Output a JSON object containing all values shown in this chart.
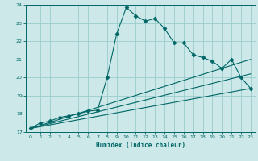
{
  "xlabel": "Humidex (Indice chaleur)",
  "xlim": [
    -0.5,
    23.5
  ],
  "ylim": [
    17,
    24
  ],
  "xticks": [
    0,
    1,
    2,
    3,
    4,
    5,
    6,
    7,
    8,
    9,
    10,
    11,
    12,
    13,
    14,
    15,
    16,
    17,
    18,
    19,
    20,
    21,
    22,
    23
  ],
  "yticks": [
    17,
    18,
    19,
    20,
    21,
    22,
    23,
    24
  ],
  "bg_color": "#cce8e8",
  "grid_color": "#99cccc",
  "line_color": "#006666",
  "series": [
    {
      "x": [
        0,
        1,
        2,
        3,
        4,
        5,
        6,
        7,
        8,
        9,
        10,
        11,
        12,
        13,
        14,
        15,
        16,
        17,
        18,
        19,
        20,
        21,
        22,
        23
      ],
      "y": [
        17.2,
        17.5,
        17.6,
        17.8,
        17.9,
        18.0,
        18.15,
        18.2,
        20.0,
        22.4,
        23.85,
        23.4,
        23.1,
        23.25,
        22.7,
        21.9,
        21.9,
        21.25,
        21.1,
        20.9,
        20.5,
        21.0,
        20.0,
        19.4
      ],
      "marker": "D",
      "markersize": 2.5
    },
    {
      "x": [
        0,
        23
      ],
      "y": [
        17.2,
        21.0
      ],
      "marker": null,
      "markersize": 0
    },
    {
      "x": [
        0,
        23
      ],
      "y": [
        17.2,
        20.2
      ],
      "marker": null,
      "markersize": 0
    },
    {
      "x": [
        0,
        23
      ],
      "y": [
        17.2,
        19.4
      ],
      "marker": null,
      "markersize": 0
    }
  ]
}
